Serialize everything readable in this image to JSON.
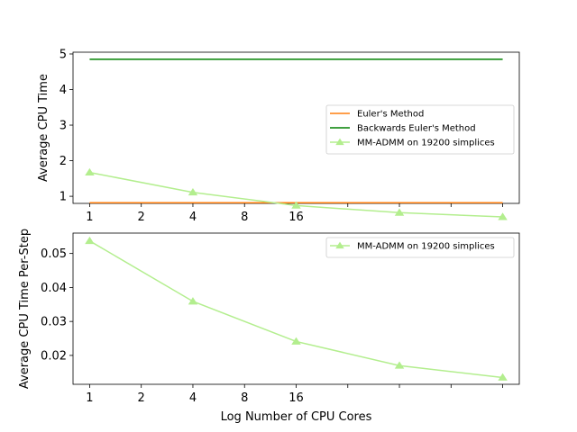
{
  "chart_data": [
    {
      "type": "line",
      "x_ticks": [
        1,
        2,
        4,
        8,
        16,
        32,
        64,
        128,
        256
      ],
      "x_tick_labels": [
        "1",
        "2",
        "4",
        "8",
        "16",
        "",
        "",
        "",
        ""
      ],
      "xlim": [
        0.8,
        320
      ],
      "ylim": [
        0.8,
        5.05
      ],
      "y_ticks": [
        1,
        2,
        3,
        4,
        5
      ],
      "y_tick_labels": [
        "1",
        "2",
        "3",
        "4",
        "5"
      ],
      "ylabel": "Average CPU Time",
      "xlabel": "",
      "legend_placement": "center-right",
      "series": [
        {
          "name": "Euler's Method",
          "color": "#ff7f0e",
          "marker": "none",
          "x": [
            1,
            256
          ],
          "values": [
            0.82,
            0.82
          ]
        },
        {
          "name": "Backwards Euler's Method",
          "color": "#008000",
          "marker": "none",
          "x": [
            1,
            256
          ],
          "values": [
            4.85,
            4.85
          ]
        },
        {
          "name": "MM-ADMM on 19200 simplices",
          "color": "#b3ee8e",
          "marker": "triangle",
          "x": [
            1,
            4,
            16,
            64,
            256
          ],
          "values": [
            1.67,
            1.11,
            0.74,
            0.54,
            0.42
          ]
        }
      ]
    },
    {
      "type": "line",
      "x_ticks": [
        1,
        2,
        4,
        8,
        16,
        32,
        64,
        128,
        256
      ],
      "x_tick_labels": [
        "1",
        "2",
        "4",
        "8",
        "16",
        "",
        "",
        "",
        ""
      ],
      "xlim": [
        0.8,
        320
      ],
      "ylim": [
        0.0115,
        0.056
      ],
      "y_ticks": [
        0.02,
        0.03,
        0.04,
        0.05
      ],
      "y_tick_labels": [
        "0.02",
        "0.03",
        "0.04",
        "0.05"
      ],
      "ylabel": "Average CPU Time Per-Step",
      "xlabel": "Log Number of CPU Cores",
      "legend_placement": "top-right",
      "series": [
        {
          "name": "MM-ADMM on 19200 simplices",
          "color": "#b3ee8e",
          "marker": "triangle",
          "x": [
            1,
            4,
            16,
            64,
            256
          ],
          "values": [
            0.0537,
            0.0359,
            0.0241,
            0.017,
            0.0135
          ]
        }
      ]
    }
  ]
}
